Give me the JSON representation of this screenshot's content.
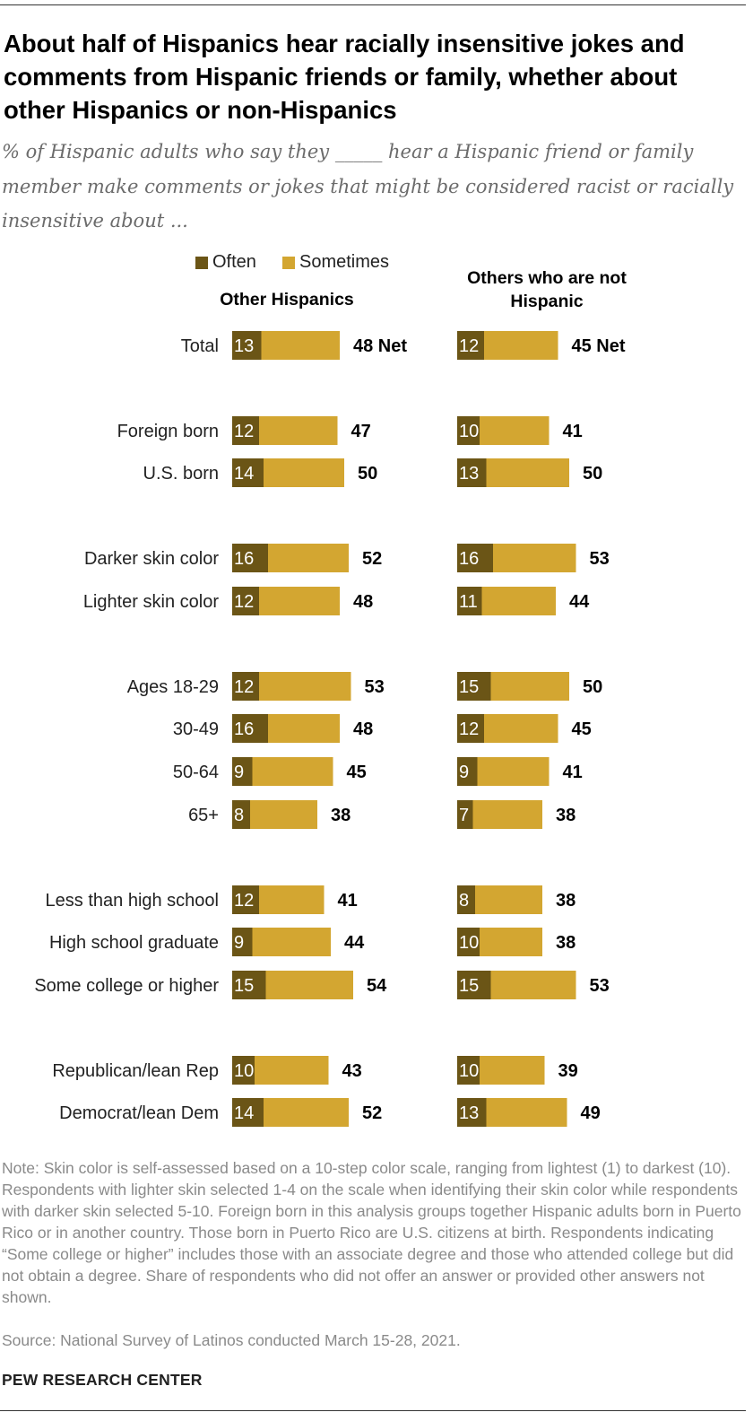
{
  "title": "About half of Hispanics hear racially insensitive jokes and comments from Hispanic friends or family, whether about other Hispanics or non-Hispanics",
  "subtitle": "% of Hispanic adults who say they _____ hear a Hispanic friend or family member make comments or jokes that might be considered racist or racially insensitive about ...",
  "legend": {
    "often": "Often",
    "sometimes": "Sometimes"
  },
  "colors": {
    "often": "#6b5516",
    "sometimes": "#d3a631"
  },
  "note": "Note: Skin color is self-assessed based on a 10-step color scale, ranging from lightest (1) to darkest (10). Respondents with lighter skin selected 1-4 on the scale when identifying their skin color while respondents with darker skin selected 5-10. Foreign born in this analysis groups together Hispanic adults born in Puerto Rico or in another country. Those born in Puerto Rico are U.S. citizens at birth. Respondents indicating “Some college or higher” includes those with an associate degree and those who attended college but did not obtain a degree. Share of respondents who did not offer an answer or provided other answers not shown.",
  "source": "Source: National Survey of Latinos conducted March 15-28, 2021.",
  "brand": "PEW RESEARCH CENTER",
  "chart_data": {
    "type": "bar",
    "orientation": "horizontal",
    "stacked": true,
    "categories": [
      "Total",
      "Foreign born",
      "U.S. born",
      "Darker skin color",
      "Lighter skin color",
      "Ages 18-29",
      "30-49",
      "50-64",
      "65+",
      "Less than high school",
      "High school graduate",
      "Some college or higher",
      "Republican/lean Rep",
      "Democrat/lean Dem"
    ],
    "groups": [
      [
        0
      ],
      [
        1,
        2
      ],
      [
        3,
        4
      ],
      [
        5,
        6,
        7,
        8
      ],
      [
        9,
        10,
        11
      ],
      [
        12,
        13
      ]
    ],
    "panels": [
      {
        "title": "Other Hispanics",
        "often": [
          13,
          12,
          14,
          16,
          12,
          12,
          16,
          9,
          8,
          12,
          9,
          15,
          10,
          14
        ],
        "net": [
          48,
          47,
          50,
          52,
          48,
          53,
          48,
          45,
          38,
          41,
          44,
          54,
          43,
          52
        ],
        "net_labels": [
          "48 Net",
          "47",
          "50",
          "52",
          "48",
          "53",
          "48",
          "45",
          "38",
          "41",
          "44",
          "54",
          "43",
          "52"
        ]
      },
      {
        "title": "Others who are not Hispanic",
        "often": [
          12,
          10,
          13,
          16,
          11,
          15,
          12,
          9,
          7,
          8,
          10,
          15,
          10,
          13
        ],
        "net": [
          45,
          41,
          50,
          53,
          44,
          50,
          45,
          41,
          38,
          38,
          38,
          53,
          39,
          49
        ],
        "net_labels": [
          "45 Net",
          "41",
          "50",
          "53",
          "44",
          "50",
          "45",
          "41",
          "38",
          "38",
          "38",
          "53",
          "39",
          "49"
        ]
      }
    ]
  }
}
